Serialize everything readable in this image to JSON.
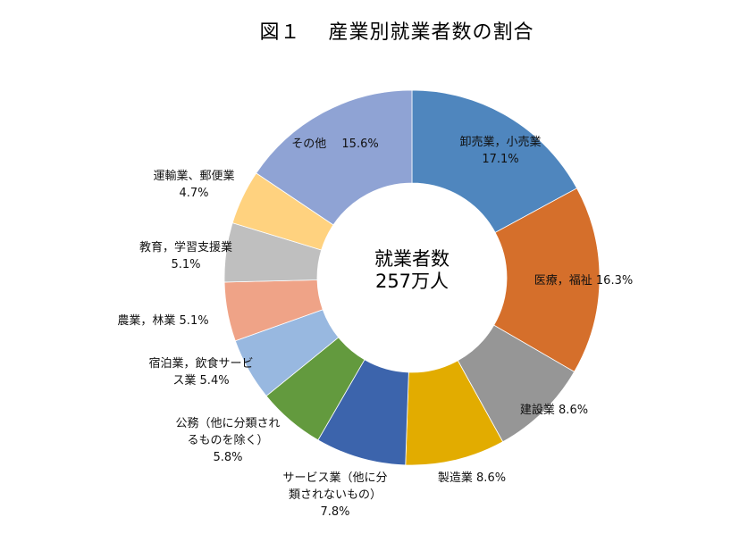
{
  "title": "図１　 産業別就業者数の割合",
  "center": {
    "line1": "就業者数",
    "line2": "257万人"
  },
  "chart_data": {
    "type": "pie",
    "subtype": "donut",
    "title": "図１　産業別就業者数の割合",
    "center_label": "就業者数 257万人",
    "unit": "%",
    "categories": [
      "卸売業，小売業",
      "医療，福祉",
      "建設業",
      "製造業",
      "サービス業（他に分類されないもの）",
      "公務（他に分類されるものを除く）",
      "宿泊業，飲食サービス業",
      "農業，林業",
      "教育，学習支援業",
      "運輸業、郵便業",
      "その他"
    ],
    "values": [
      17.1,
      16.3,
      8.6,
      8.6,
      7.8,
      5.8,
      5.4,
      5.1,
      5.1,
      4.7,
      15.6
    ],
    "colors": [
      "#4F86BE",
      "#D56F2B",
      "#969696",
      "#E2AC00",
      "#3C64AC",
      "#639A3E",
      "#98B8E0",
      "#EFA387",
      "#BFBFBF",
      "#FFD27F",
      "#8FA3D4"
    ],
    "start_angle": "12 o'clock, clockwise"
  },
  "labels": [
    {
      "line1": "卸売業，小売業",
      "line2": "17.1%"
    },
    {
      "line1": "医療，福祉 16.3%"
    },
    {
      "line1": "建設業 8.6%"
    },
    {
      "line1": "製造業 8.6%"
    },
    {
      "line1": "サービス業（他に分",
      "line2": "類されないもの）",
      "line3": "7.8%"
    },
    {
      "line1": "公務（他に分類され",
      "line2": "るものを除く）",
      "line3": "5.8%"
    },
    {
      "line1": "宿泊業，飲食サービ",
      "line2": "ス業 5.4%"
    },
    {
      "line1": "農業，林業 5.1%"
    },
    {
      "line1": "教育，学習支援業",
      "line2": "5.1%"
    },
    {
      "line1": "運輸業、郵便業",
      "line2": "4.7%"
    },
    {
      "line1": "その他　 15.6%"
    }
  ]
}
